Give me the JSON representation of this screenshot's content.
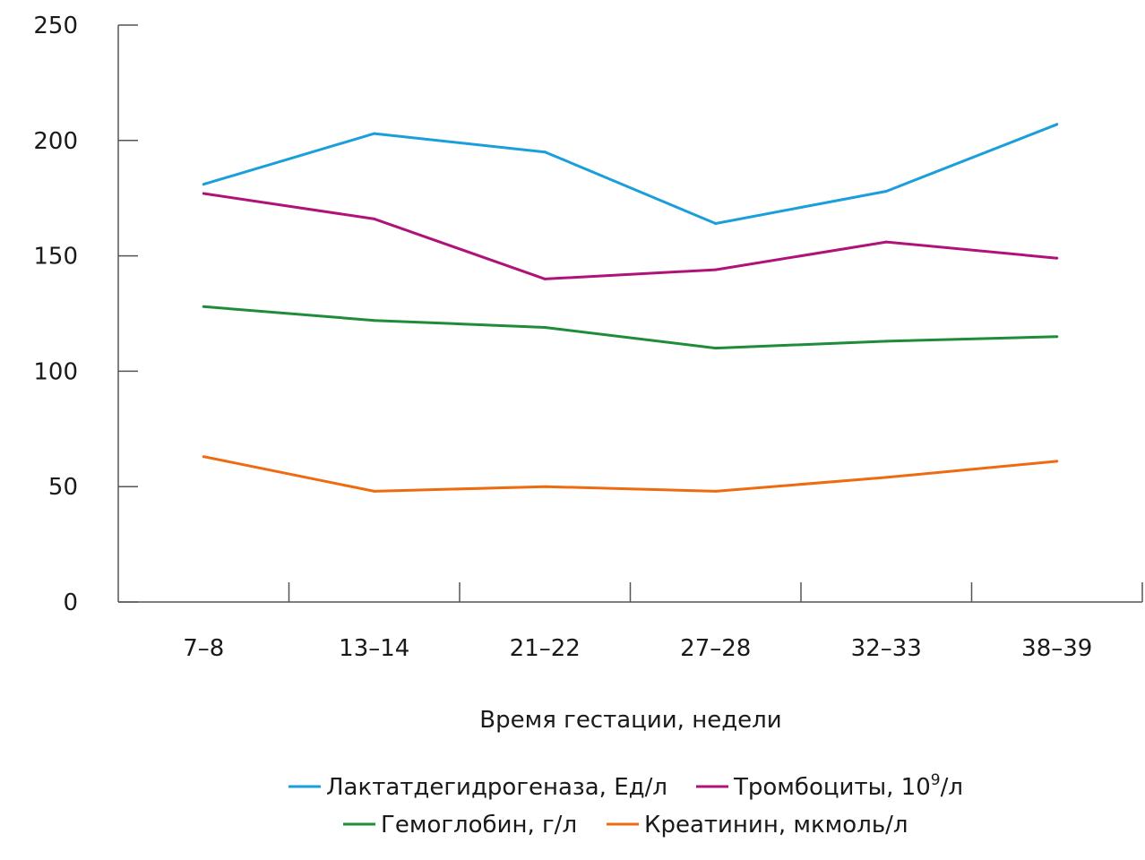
{
  "chart_data": {
    "type": "line",
    "xlabel": "Время гестации, недели",
    "ylabel": "",
    "categories": [
      "7–8",
      "13–14",
      "21–22",
      "27–28",
      "32–33",
      "38–39"
    ],
    "ylim": [
      0,
      250
    ],
    "yticks": [
      0,
      50,
      100,
      150,
      200,
      250
    ],
    "grid": false,
    "legend_position": "bottom",
    "series": [
      {
        "name": "Лактатдегидрогеназа, Ед/л",
        "color": "#1a9fdb",
        "values": [
          181,
          203,
          195,
          164,
          178,
          207
        ]
      },
      {
        "name_base": "Тромбоциты, 10",
        "name_sup": "9",
        "name_tail": "/л",
        "color": "#b0127a",
        "values": [
          177,
          166,
          140,
          144,
          156,
          149
        ]
      },
      {
        "name": "Гемоглобин, г/л",
        "color": "#1e8c3a",
        "values": [
          128,
          122,
          119,
          110,
          113,
          115
        ]
      },
      {
        "name": "Креатинин, мкмоль/л",
        "color": "#ee6b10",
        "values": [
          63,
          48,
          50,
          48,
          54,
          61
        ]
      }
    ]
  }
}
